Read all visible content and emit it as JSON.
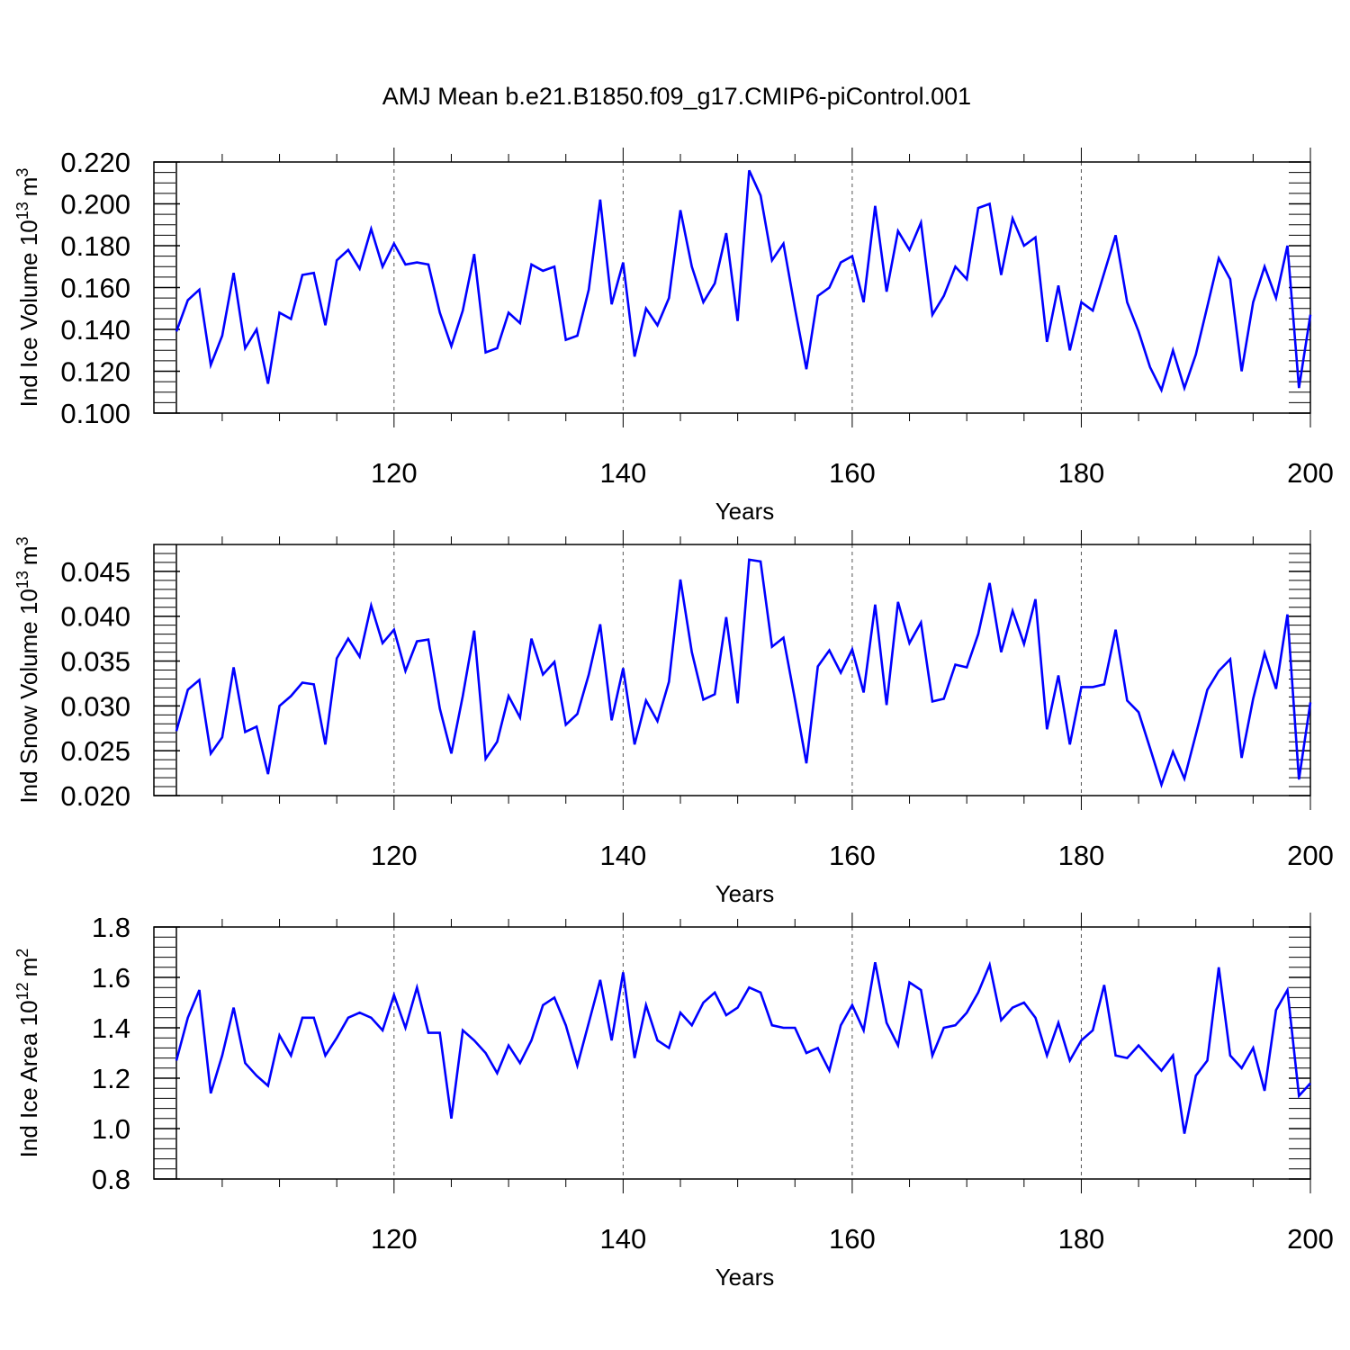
{
  "title": "AMJ Mean b.e21.B1850.f09_g17.CMIP6-piControl.001",
  "chart_data": [
    {
      "type": "line",
      "id": "ice-volume",
      "ylabel_main": "Ind Ice Volume 10",
      "ylabel_exp": "13",
      "ylabel_unit": "m",
      "ylabel_unit_exp": "3",
      "xlabel": "Years",
      "xlim": [
        101,
        200
      ],
      "ylim": [
        0.1,
        0.22
      ],
      "x_ticks": [
        120,
        140,
        160,
        180,
        200
      ],
      "x_tick_labels": [
        "120",
        "140",
        "160",
        "180",
        "200"
      ],
      "y_ticks": [
        0.1,
        0.12,
        0.14,
        0.16,
        0.18,
        0.2,
        0.22
      ],
      "y_tick_labels": [
        "0.100",
        "0.120",
        "0.140",
        "0.160",
        "0.180",
        "0.200",
        "0.220"
      ],
      "y_minor_step": 0.005,
      "gridlines_x": [
        120,
        140,
        160,
        180
      ],
      "series": [
        {
          "name": "Ind Ice Volume",
          "color": "#0000ff",
          "x_start": 101,
          "values": [
            0.139,
            0.154,
            0.159,
            0.123,
            0.137,
            0.167,
            0.131,
            0.14,
            0.114,
            0.148,
            0.145,
            0.166,
            0.167,
            0.142,
            0.173,
            0.178,
            0.169,
            0.188,
            0.17,
            0.181,
            0.171,
            0.172,
            0.171,
            0.148,
            0.132,
            0.149,
            0.176,
            0.129,
            0.131,
            0.148,
            0.143,
            0.171,
            0.168,
            0.17,
            0.135,
            0.137,
            0.159,
            0.202,
            0.152,
            0.172,
            0.127,
            0.15,
            0.142,
            0.155,
            0.197,
            0.17,
            0.153,
            0.162,
            0.186,
            0.144,
            0.216,
            0.204,
            0.173,
            0.181,
            0.15,
            0.121,
            0.156,
            0.16,
            0.172,
            0.175,
            0.153,
            0.199,
            0.158,
            0.187,
            0.178,
            0.191,
            0.147,
            0.156,
            0.17,
            0.164,
            0.198,
            0.2,
            0.166,
            0.193,
            0.18,
            0.184,
            0.134,
            0.161,
            0.13,
            0.153,
            0.149,
            0.167,
            0.185,
            0.153,
            0.139,
            0.122,
            0.111,
            0.13,
            0.112,
            0.128,
            0.151,
            0.174,
            0.164,
            0.12,
            0.153,
            0.17,
            0.155,
            0.18,
            0.112,
            0.147
          ]
        }
      ]
    },
    {
      "type": "line",
      "id": "snow-volume",
      "ylabel_main": "Ind Snow Volume 10",
      "ylabel_exp": "13",
      "ylabel_unit": "m",
      "ylabel_unit_exp": "3",
      "xlabel": "Years",
      "xlim": [
        101,
        200
      ],
      "ylim": [
        0.02,
        0.048
      ],
      "x_ticks": [
        120,
        140,
        160,
        180,
        200
      ],
      "x_tick_labels": [
        "120",
        "140",
        "160",
        "180",
        "200"
      ],
      "y_ticks": [
        0.02,
        0.025,
        0.03,
        0.035,
        0.04,
        0.045
      ],
      "y_tick_labels": [
        "0.020",
        "0.025",
        "0.030",
        "0.035",
        "0.040",
        "0.045"
      ],
      "y_minor_step": 0.001,
      "gridlines_x": [
        120,
        140,
        160,
        180
      ],
      "series": [
        {
          "name": "Ind Snow Volume",
          "color": "#0000ff",
          "x_start": 101,
          "values": [
            0.0272,
            0.0318,
            0.0329,
            0.0247,
            0.0265,
            0.0343,
            0.0271,
            0.0277,
            0.0224,
            0.03,
            0.0311,
            0.0326,
            0.0324,
            0.0257,
            0.0353,
            0.0375,
            0.0355,
            0.0412,
            0.037,
            0.0385,
            0.0339,
            0.0372,
            0.0374,
            0.0297,
            0.0247,
            0.0311,
            0.0384,
            0.0241,
            0.026,
            0.0311,
            0.0287,
            0.0375,
            0.0335,
            0.0349,
            0.0279,
            0.0291,
            0.0335,
            0.0391,
            0.0284,
            0.0342,
            0.0257,
            0.0306,
            0.0283,
            0.0327,
            0.0441,
            0.036,
            0.0307,
            0.0313,
            0.0399,
            0.0303,
            0.0463,
            0.0461,
            0.0366,
            0.0376,
            0.0307,
            0.0236,
            0.0344,
            0.0362,
            0.0337,
            0.0363,
            0.0315,
            0.0413,
            0.0301,
            0.0416,
            0.037,
            0.0393,
            0.0305,
            0.0308,
            0.0346,
            0.0343,
            0.038,
            0.0437,
            0.036,
            0.0406,
            0.0369,
            0.0419,
            0.0274,
            0.0334,
            0.0257,
            0.0321,
            0.0321,
            0.0324,
            0.0385,
            0.0306,
            0.0293,
            0.0253,
            0.0212,
            0.0249,
            0.0219,
            0.0268,
            0.0318,
            0.0339,
            0.0352,
            0.0242,
            0.0308,
            0.0359,
            0.0319,
            0.0402,
            0.0218,
            0.0304
          ]
        }
      ]
    },
    {
      "type": "line",
      "id": "ice-area",
      "ylabel_main": "Ind Ice Area 10",
      "ylabel_exp": "12",
      "ylabel_unit": "m",
      "ylabel_unit_exp": "2",
      "xlabel": "Years",
      "xlim": [
        101,
        200
      ],
      "ylim": [
        0.8,
        1.8
      ],
      "x_ticks": [
        120,
        140,
        160,
        180,
        200
      ],
      "x_tick_labels": [
        "120",
        "140",
        "160",
        "180",
        "200"
      ],
      "y_ticks": [
        0.8,
        1.0,
        1.2,
        1.4,
        1.6,
        1.8
      ],
      "y_tick_labels": [
        "0.8",
        "1.0",
        "1.2",
        "1.4",
        "1.6",
        "1.8"
      ],
      "y_minor_step": 0.04,
      "gridlines_x": [
        120,
        140,
        160,
        180
      ],
      "series": [
        {
          "name": "Ind Ice Area",
          "color": "#0000ff",
          "x_start": 101,
          "values": [
            1.27,
            1.44,
            1.55,
            1.14,
            1.29,
            1.48,
            1.26,
            1.21,
            1.17,
            1.37,
            1.29,
            1.44,
            1.44,
            1.29,
            1.36,
            1.44,
            1.46,
            1.44,
            1.39,
            1.53,
            1.4,
            1.56,
            1.38,
            1.38,
            1.04,
            1.39,
            1.35,
            1.3,
            1.22,
            1.33,
            1.26,
            1.35,
            1.49,
            1.52,
            1.41,
            1.25,
            1.42,
            1.59,
            1.35,
            1.62,
            1.28,
            1.49,
            1.35,
            1.32,
            1.46,
            1.41,
            1.5,
            1.54,
            1.45,
            1.48,
            1.56,
            1.54,
            1.41,
            1.4,
            1.4,
            1.3,
            1.32,
            1.23,
            1.41,
            1.49,
            1.39,
            1.66,
            1.42,
            1.33,
            1.58,
            1.55,
            1.29,
            1.4,
            1.41,
            1.46,
            1.54,
            1.65,
            1.43,
            1.48,
            1.5,
            1.44,
            1.29,
            1.42,
            1.27,
            1.35,
            1.39,
            1.57,
            1.29,
            1.28,
            1.33,
            1.28,
            1.23,
            1.29,
            0.98,
            1.21,
            1.27,
            1.64,
            1.29,
            1.24,
            1.32,
            1.15,
            1.47,
            1.55,
            1.13,
            1.18
          ]
        }
      ]
    }
  ]
}
